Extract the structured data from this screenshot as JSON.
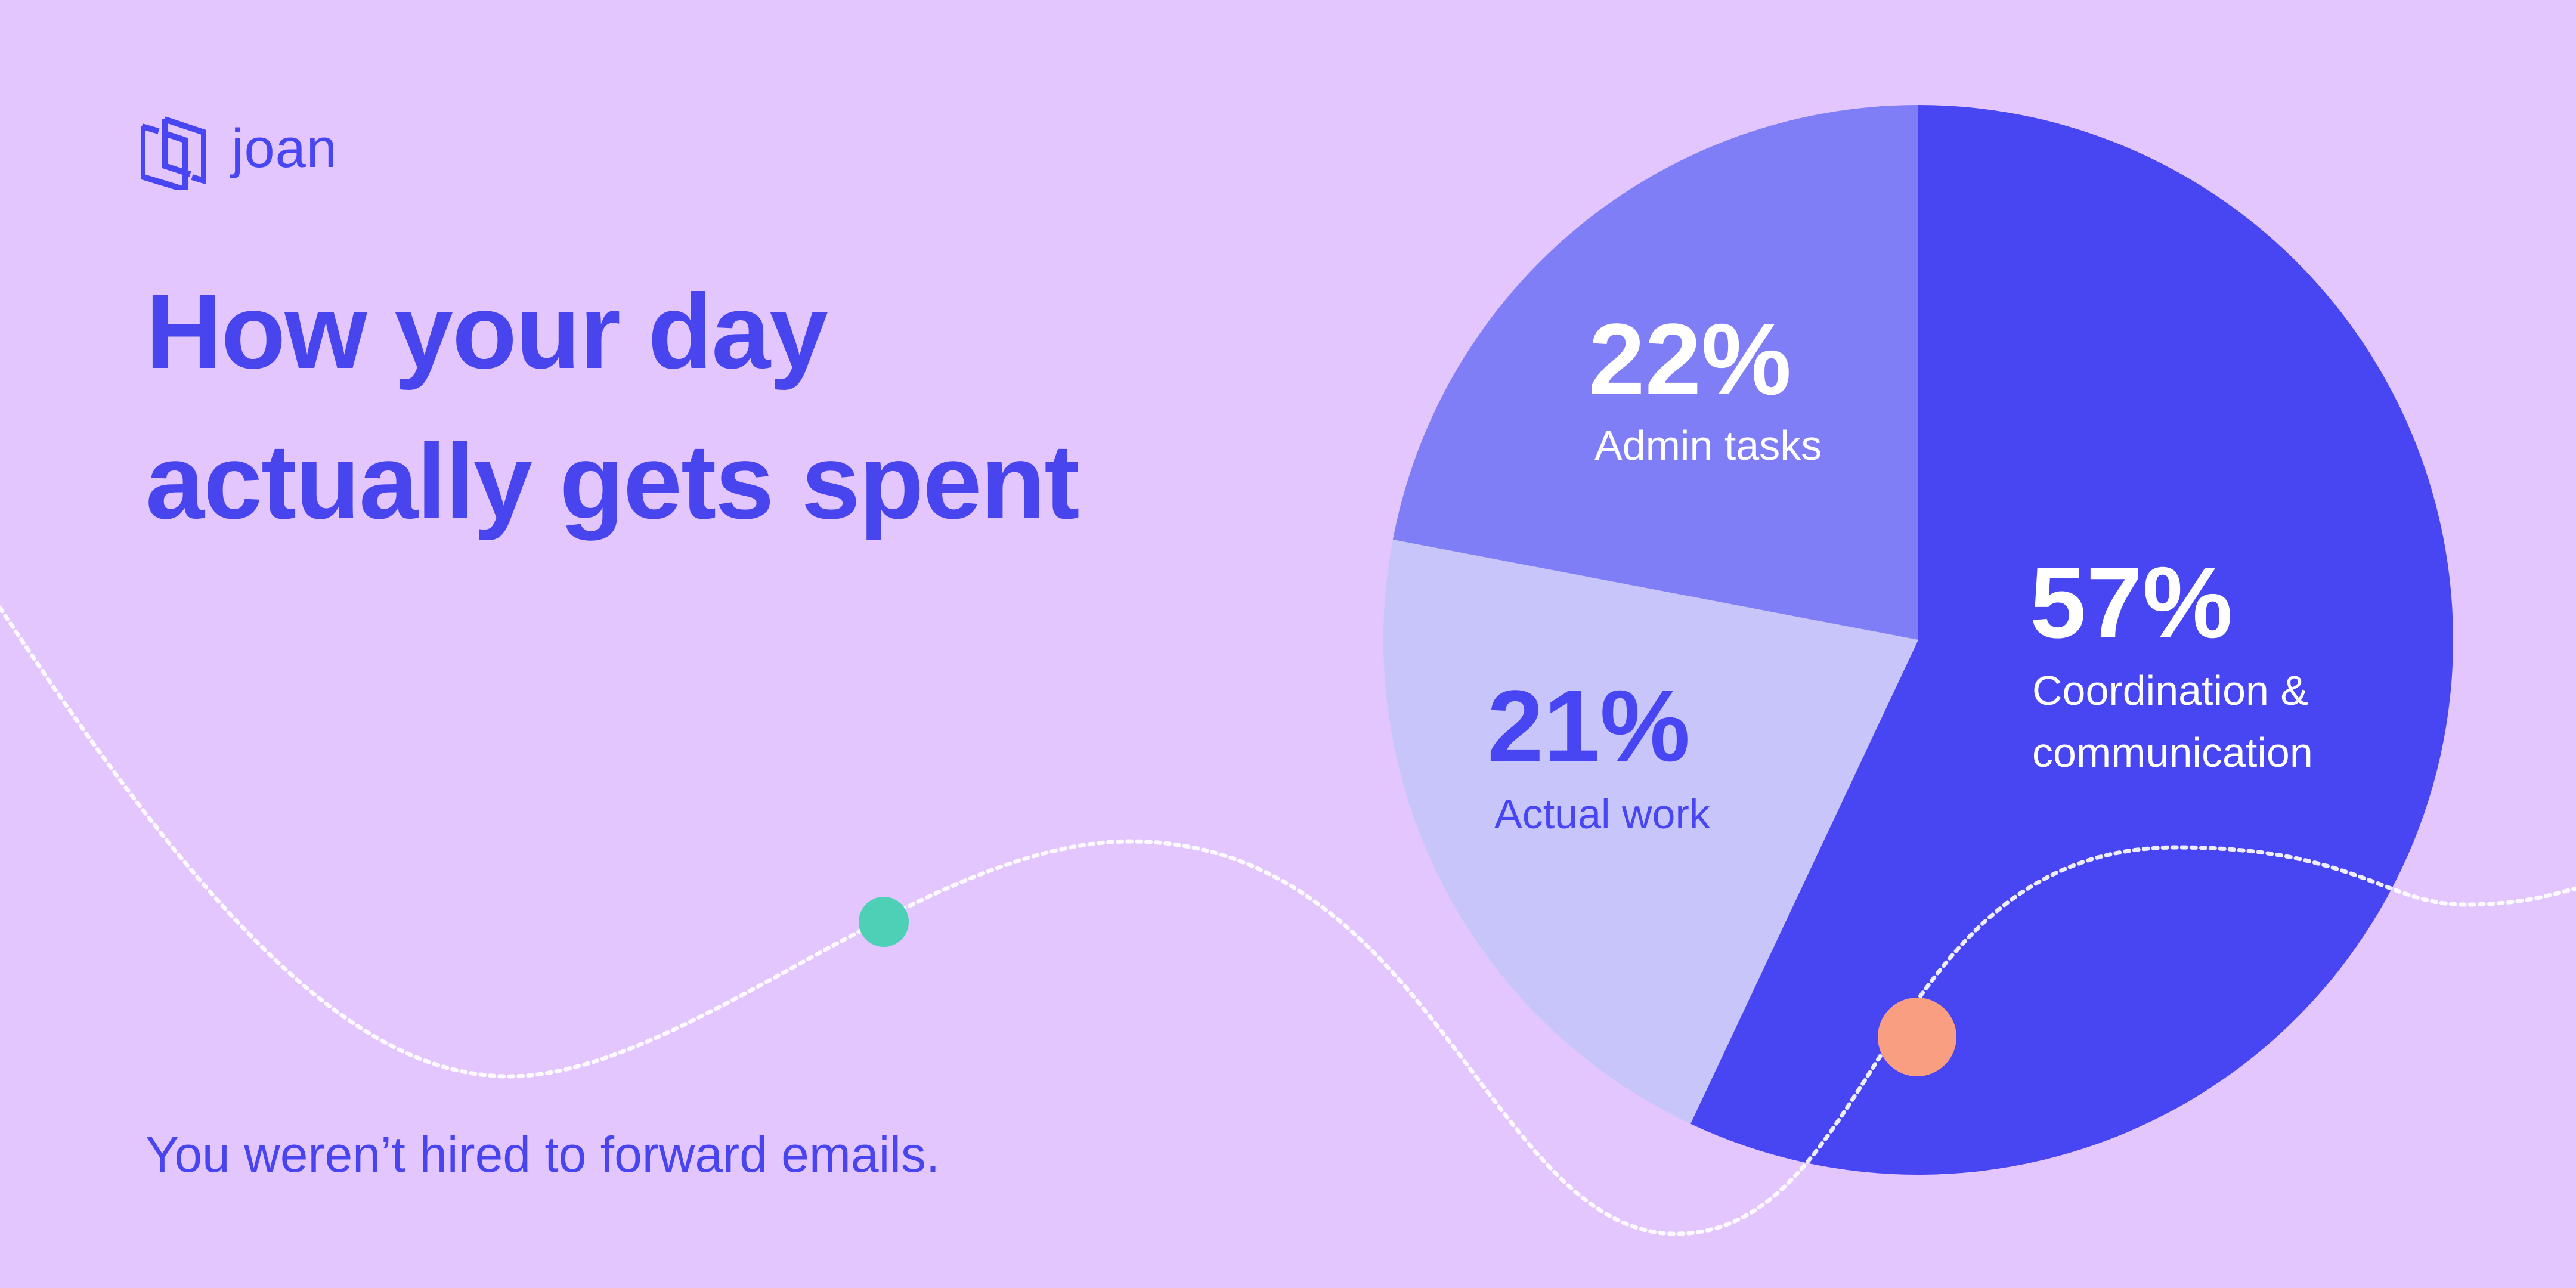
{
  "brand": {
    "name": "joan",
    "icon": "joan-logo-icon"
  },
  "headline": {
    "line1": "How your day",
    "line2": "actually gets spent"
  },
  "footer": {
    "tagline": "You weren’t hired to forward emails."
  },
  "colors": {
    "background": "#E2C6FD",
    "accent": "#4845F2",
    "admin": "#7F7EF7",
    "work": "#C7C5FA",
    "dot_teal": "#4DD0B6",
    "dot_salmon": "#FA9E82"
  },
  "chart_data": {
    "type": "pie",
    "title": "How your day actually gets spent",
    "start": "12 o'clock, clockwise",
    "slices": [
      {
        "label": "Coordination & communication",
        "label_line1": "Coordination &",
        "label_line2": "communication",
        "value": 57,
        "value_label": "57%",
        "color": "#4845F2",
        "text_color": "#FFFFFF"
      },
      {
        "label": "Actual work",
        "value": 21,
        "value_label": "21%",
        "color": "#C7C5FA",
        "text_color": "#4845F2"
      },
      {
        "label": "Admin tasks",
        "value": 22,
        "value_label": "22%",
        "color": "#7F7EF7",
        "text_color": "#FFFFFF"
      }
    ]
  }
}
